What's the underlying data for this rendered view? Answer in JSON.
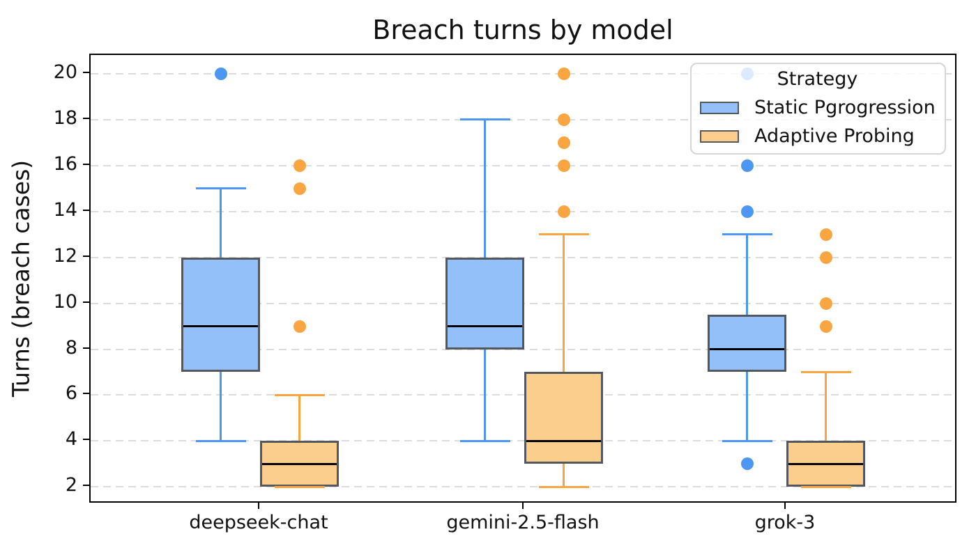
{
  "chart_data": {
    "type": "boxplot",
    "title": "Breach turns by model",
    "ylabel": "Turns (breach cases)",
    "xlabel": "",
    "categories": [
      "deepseek-chat",
      "gemini-2.5-flash",
      "grok-3"
    ],
    "y_ticks": [
      2,
      4,
      6,
      8,
      10,
      12,
      14,
      16,
      18,
      20
    ],
    "ylim": [
      1.25,
      20.82
    ],
    "grid": "horizontal-dashed",
    "legend_position": "upper-right",
    "colors": {
      "static_fill": "#93c0f8",
      "static_line": "#4d96f2",
      "adaptive_fill": "#fbce8d",
      "adaptive_line": "#f9a642",
      "box_edge": "#54585e",
      "median": "#000000",
      "grid": "#dcdcdc"
    },
    "series": [
      {
        "name": "Static Pgrogression",
        "fill": "#93c0f8",
        "line": "#4d96f2",
        "boxes": [
          {
            "category": "deepseek-chat",
            "whislo": 4,
            "q1": 7,
            "med": 9,
            "q3": 12,
            "whishi": 15,
            "fliers": [
              20
            ]
          },
          {
            "category": "gemini-2.5-flash",
            "whislo": 4,
            "q1": 8,
            "med": 9,
            "q3": 12,
            "whishi": 18,
            "fliers": []
          },
          {
            "category": "grok-3",
            "whislo": 4,
            "q1": 7,
            "med": 8,
            "q3": 9.5,
            "whishi": 13,
            "fliers": [
              3,
              14,
              16,
              20
            ]
          }
        ]
      },
      {
        "name": "Adaptive Probing",
        "fill": "#fbce8d",
        "line": "#f9a642",
        "boxes": [
          {
            "category": "deepseek-chat",
            "whislo": 2,
            "q1": 2,
            "med": 3,
            "q3": 4,
            "whishi": 6,
            "fliers": [
              9,
              15,
              16
            ]
          },
          {
            "category": "gemini-2.5-flash",
            "whislo": 2,
            "q1": 3,
            "med": 4,
            "q3": 7,
            "whishi": 13,
            "fliers": [
              14,
              16,
              17,
              18,
              20
            ]
          },
          {
            "category": "grok-3",
            "whislo": 2,
            "q1": 2,
            "med": 3,
            "q3": 4,
            "whishi": 7,
            "fliers": [
              9,
              10,
              12,
              13
            ]
          }
        ]
      }
    ]
  },
  "legend": {
    "title": "Strategy",
    "items": [
      {
        "label": "Static Pgrogression"
      },
      {
        "label": "Adaptive Probing"
      }
    ]
  }
}
